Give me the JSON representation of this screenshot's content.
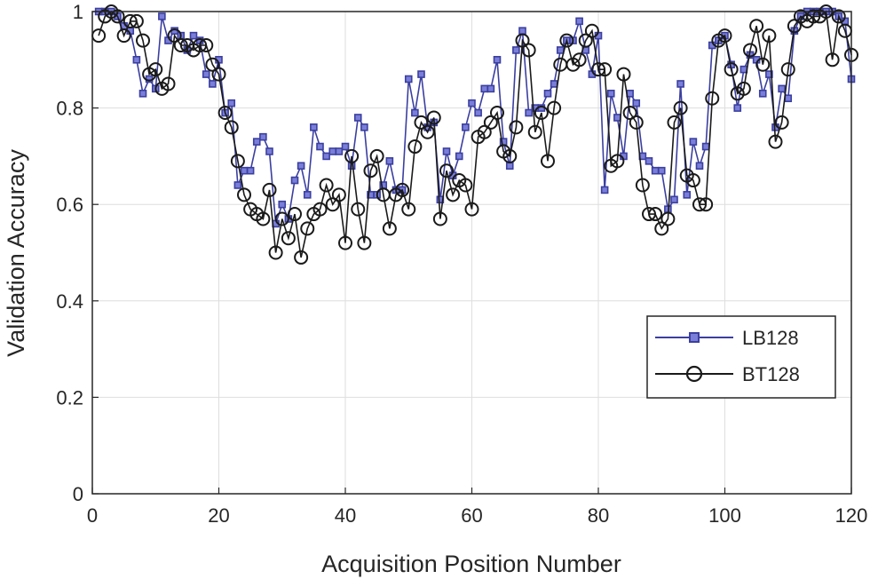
{
  "chart_data": {
    "type": "line",
    "xlabel": "Acquisition Position Number",
    "ylabel": "Validation Accuracy",
    "xlim": [
      0,
      120
    ],
    "ylim": [
      0,
      1
    ],
    "x_ticks": [
      0,
      20,
      40,
      60,
      80,
      100,
      120
    ],
    "y_ticks": [
      0,
      0.2,
      0.4,
      0.6,
      0.8,
      1
    ],
    "y_tick_labels": [
      "0",
      "0.2",
      "0.4",
      "0.6",
      "0.8",
      "1"
    ],
    "grid": true,
    "legend_position": "lower-right",
    "x": [
      1,
      2,
      3,
      4,
      5,
      6,
      7,
      8,
      9,
      10,
      11,
      12,
      13,
      14,
      15,
      16,
      17,
      18,
      19,
      20,
      21,
      22,
      23,
      24,
      25,
      26,
      27,
      28,
      29,
      30,
      31,
      32,
      33,
      34,
      35,
      36,
      37,
      38,
      39,
      40,
      41,
      42,
      43,
      44,
      45,
      46,
      47,
      48,
      49,
      50,
      51,
      52,
      53,
      54,
      55,
      56,
      57,
      58,
      59,
      60,
      61,
      62,
      63,
      64,
      65,
      66,
      67,
      68,
      69,
      70,
      71,
      72,
      73,
      74,
      75,
      76,
      77,
      78,
      79,
      80,
      81,
      82,
      83,
      84,
      85,
      86,
      87,
      88,
      89,
      90,
      91,
      92,
      93,
      94,
      95,
      96,
      97,
      98,
      99,
      100,
      101,
      102,
      103,
      104,
      105,
      106,
      107,
      108,
      109,
      110,
      111,
      112,
      113,
      114,
      115,
      116,
      117,
      118,
      119,
      120
    ],
    "series": [
      {
        "name": "LB128",
        "color": "#3b3fa0",
        "marker": "square",
        "values": [
          1.0,
          1.0,
          1.0,
          0.99,
          0.97,
          0.96,
          0.9,
          0.83,
          0.86,
          0.84,
          0.99,
          0.94,
          0.96,
          0.95,
          0.92,
          0.95,
          0.94,
          0.87,
          0.85,
          0.9,
          0.79,
          0.81,
          0.64,
          0.67,
          0.67,
          0.73,
          0.74,
          0.71,
          0.56,
          0.6,
          0.57,
          0.65,
          0.68,
          0.62,
          0.76,
          0.72,
          0.7,
          0.71,
          0.71,
          0.72,
          0.68,
          0.78,
          0.76,
          0.62,
          0.62,
          0.64,
          0.69,
          0.63,
          0.63,
          0.86,
          0.79,
          0.87,
          0.76,
          0.77,
          0.61,
          0.71,
          0.66,
          0.7,
          0.76,
          0.81,
          0.79,
          0.84,
          0.84,
          0.9,
          0.73,
          0.68,
          0.92,
          0.96,
          0.79,
          0.8,
          0.8,
          0.83,
          0.85,
          0.92,
          0.94,
          0.94,
          0.98,
          0.92,
          0.87,
          0.95,
          0.63,
          0.83,
          0.78,
          0.7,
          0.83,
          0.81,
          0.7,
          0.69,
          0.67,
          0.67,
          0.59,
          0.61,
          0.85,
          0.62,
          0.73,
          0.68,
          0.72,
          0.93,
          0.94,
          0.95,
          0.89,
          0.8,
          0.88,
          0.91,
          0.9,
          0.83,
          0.87,
          0.76,
          0.84,
          0.82,
          0.96,
          0.99,
          1.0,
          1.0,
          1.0,
          1.0,
          1.0,
          0.99,
          0.98,
          0.86
        ]
      },
      {
        "name": "BT128",
        "color": "#1a1a1a",
        "marker": "circle",
        "values": [
          0.95,
          0.99,
          1.0,
          0.99,
          0.95,
          0.98,
          0.98,
          0.94,
          0.87,
          0.88,
          0.84,
          0.85,
          0.95,
          0.93,
          0.93,
          0.92,
          0.93,
          0.93,
          0.89,
          0.87,
          0.79,
          0.76,
          0.69,
          0.62,
          0.59,
          0.58,
          0.57,
          0.63,
          0.5,
          0.57,
          0.53,
          0.58,
          0.49,
          0.55,
          0.58,
          0.59,
          0.64,
          0.6,
          0.62,
          0.52,
          0.7,
          0.59,
          0.52,
          0.67,
          0.7,
          0.62,
          0.55,
          0.62,
          0.63,
          0.59,
          0.72,
          0.77,
          0.75,
          0.78,
          0.57,
          0.67,
          0.62,
          0.65,
          0.64,
          0.59,
          0.74,
          0.75,
          0.77,
          0.79,
          0.71,
          0.7,
          0.76,
          0.94,
          0.92,
          0.75,
          0.79,
          0.69,
          0.8,
          0.89,
          0.94,
          0.89,
          0.9,
          0.94,
          0.96,
          0.88,
          0.88,
          0.68,
          0.69,
          0.87,
          0.79,
          0.77,
          0.64,
          0.58,
          0.58,
          0.55,
          0.57,
          0.77,
          0.8,
          0.66,
          0.65,
          0.6,
          0.6,
          0.82,
          0.94,
          0.95,
          0.88,
          0.83,
          0.84,
          0.92,
          0.97,
          0.89,
          0.95,
          0.73,
          0.77,
          0.88,
          0.97,
          0.99,
          0.98,
          0.99,
          0.99,
          1.0,
          0.9,
          0.99,
          0.96,
          0.91
        ]
      }
    ]
  }
}
